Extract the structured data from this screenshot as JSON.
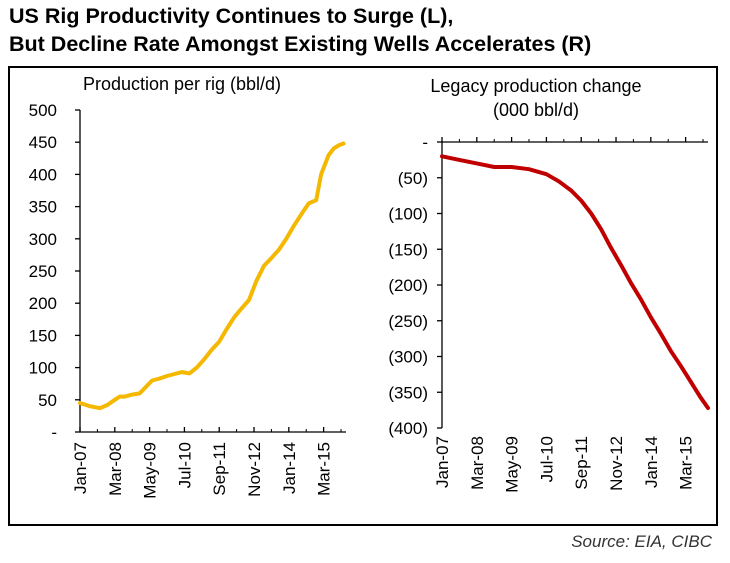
{
  "title": {
    "line1": "US Rig Productivity Continues to Surge (L),",
    "line2": "But Decline Rate Amongst Existing Wells Accelerates (R)"
  },
  "source": "Source: EIA, CIBC",
  "colors": {
    "left_series": "#f5b800",
    "right_series": "#c00000",
    "axis": "#000000"
  },
  "chart_data": [
    {
      "type": "line",
      "title": "Production per rig (bbl/d)",
      "xlabel": "",
      "ylabel": "",
      "ylim": [
        0,
        500
      ],
      "y_ticks": [
        0,
        50,
        100,
        150,
        200,
        250,
        300,
        350,
        400,
        450,
        500
      ],
      "y_tick_labels": [
        "-",
        "50",
        "100",
        "150",
        "200",
        "250",
        "300",
        "350",
        "400",
        "450",
        "500"
      ],
      "x_range": [
        "Jan-07",
        "Dec-16"
      ],
      "x_tick_labels": [
        "Jan-07",
        "Mar-08",
        "May-09",
        "Jul-10",
        "Sep-11",
        "Nov-12",
        "Jan-14",
        "Mar-15"
      ],
      "x_tick_positions": [
        0,
        14,
        28,
        42,
        56,
        70,
        84,
        98
      ],
      "series": [
        {
          "name": "Production per rig (bbl/d)",
          "x": [
            0,
            4,
            8,
            11,
            14,
            16,
            18,
            21,
            24,
            26,
            29,
            32,
            35,
            38,
            41,
            44,
            47,
            50,
            53,
            56,
            59,
            62,
            65,
            68,
            71,
            74,
            77,
            80,
            83,
            86,
            89,
            92,
            95,
            97,
            99,
            100,
            102,
            104,
            106
          ],
          "values": [
            45,
            40,
            37,
            42,
            50,
            55,
            55,
            58,
            60,
            68,
            80,
            83,
            87,
            90,
            93,
            91,
            100,
            113,
            128,
            140,
            160,
            178,
            192,
            205,
            235,
            258,
            270,
            283,
            300,
            320,
            338,
            355,
            360,
            400,
            420,
            430,
            440,
            445,
            448
          ]
        }
      ]
    },
    {
      "type": "line",
      "title": "Legacy production change (000 bbl/d)",
      "title_lines": [
        "Legacy production change",
        "(000 bbl/d)"
      ],
      "xlabel": "",
      "ylabel": "",
      "ylim": [
        -400,
        0
      ],
      "y_ticks": [
        0,
        -50,
        -100,
        -150,
        -200,
        -250,
        -300,
        -350,
        -400
      ],
      "y_tick_labels": [
        "-",
        "(50)",
        "(100)",
        "(150)",
        "(200)",
        "(250)",
        "(300)",
        "(350)",
        "(400)"
      ],
      "x_range": [
        "Jan-07",
        "Dec-16"
      ],
      "x_tick_labels": [
        "Jan-07",
        "Mar-08",
        "May-09",
        "Jul-10",
        "Sep-11",
        "Nov-12",
        "Jan-14",
        "Mar-15"
      ],
      "x_tick_positions": [
        0,
        14,
        28,
        42,
        56,
        70,
        84,
        98
      ],
      "series": [
        {
          "name": "Legacy production change",
          "x": [
            0,
            7,
            14,
            21,
            28,
            35,
            42,
            47,
            52,
            56,
            60,
            64,
            68,
            72,
            76,
            80,
            84,
            88,
            92,
            96,
            100,
            104,
            107
          ],
          "values": [
            -20,
            -25,
            -30,
            -35,
            -35,
            -38,
            -45,
            -55,
            -68,
            -82,
            -100,
            -122,
            -148,
            -172,
            -197,
            -220,
            -245,
            -268,
            -292,
            -313,
            -335,
            -357,
            -372
          ]
        }
      ]
    }
  ]
}
